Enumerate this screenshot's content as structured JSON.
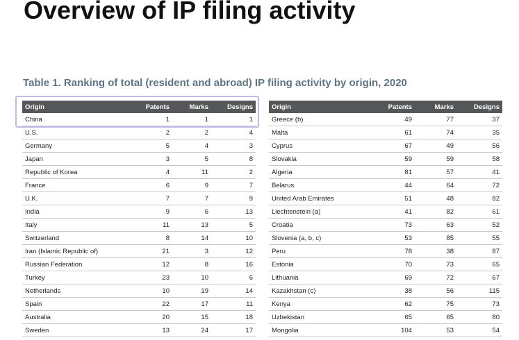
{
  "page_title": "Overview of IP filing activity",
  "table_caption": "Table 1. Ranking of total (resident and abroad) IP filing activity by origin, 2020",
  "columns": {
    "origin": "Origin",
    "patents": "Patents",
    "marks": "Marks",
    "designs": "Designs"
  },
  "left_rows": [
    {
      "origin": "China",
      "patents": "1",
      "marks": "1",
      "designs": "1"
    },
    {
      "origin": "U.S.",
      "patents": "2",
      "marks": "2",
      "designs": "4"
    },
    {
      "origin": "Germany",
      "patents": "5",
      "marks": "4",
      "designs": "3"
    },
    {
      "origin": "Japan",
      "patents": "3",
      "marks": "5",
      "designs": "8"
    },
    {
      "origin": "Republic of Korea",
      "patents": "4",
      "marks": "11",
      "designs": "2"
    },
    {
      "origin": "France",
      "patents": "6",
      "marks": "9",
      "designs": "7"
    },
    {
      "origin": "U.K.",
      "patents": "7",
      "marks": "7",
      "designs": "9"
    },
    {
      "origin": "India",
      "patents": "9",
      "marks": "6",
      "designs": "13"
    },
    {
      "origin": "Italy",
      "patents": "11",
      "marks": "13",
      "designs": "5"
    },
    {
      "origin": "Switzerland",
      "patents": "8",
      "marks": "14",
      "designs": "10"
    },
    {
      "origin": "Iran (Islamic Republic of)",
      "patents": "21",
      "marks": "3",
      "designs": "12"
    },
    {
      "origin": "Russian Federation",
      "patents": "12",
      "marks": "8",
      "designs": "16"
    },
    {
      "origin": "Turkey",
      "patents": "23",
      "marks": "10",
      "designs": "6"
    },
    {
      "origin": "Netherlands",
      "patents": "10",
      "marks": "19",
      "designs": "14"
    },
    {
      "origin": "Spain",
      "patents": "22",
      "marks": "17",
      "designs": "11"
    },
    {
      "origin": "Australia",
      "patents": "20",
      "marks": "15",
      "designs": "18"
    },
    {
      "origin": "Sweden",
      "patents": "13",
      "marks": "24",
      "designs": "17"
    }
  ],
  "right_rows": [
    {
      "origin": "Greece (b)",
      "patents": "49",
      "marks": "77",
      "designs": "37"
    },
    {
      "origin": "Malta",
      "patents": "61",
      "marks": "74",
      "designs": "35"
    },
    {
      "origin": "Cyprus",
      "patents": "67",
      "marks": "49",
      "designs": "56"
    },
    {
      "origin": "Slovakia",
      "patents": "59",
      "marks": "59",
      "designs": "58"
    },
    {
      "origin": "Algeria",
      "patents": "81",
      "marks": "57",
      "designs": "41"
    },
    {
      "origin": "Belarus",
      "patents": "44",
      "marks": "64",
      "designs": "72"
    },
    {
      "origin": "United Arab Emirates",
      "patents": "51",
      "marks": "48",
      "designs": "82"
    },
    {
      "origin": "Liechtenstein (a)",
      "patents": "41",
      "marks": "82",
      "designs": "61"
    },
    {
      "origin": "Croatia",
      "patents": "73",
      "marks": "63",
      "designs": "52"
    },
    {
      "origin": "Slovenia (a, b, c)",
      "patents": "53",
      "marks": "85",
      "designs": "55"
    },
    {
      "origin": "Peru",
      "patents": "78",
      "marks": "38",
      "designs": "87"
    },
    {
      "origin": "Estonia",
      "patents": "70",
      "marks": "73",
      "designs": "65"
    },
    {
      "origin": "Lithuania",
      "patents": "69",
      "marks": "72",
      "designs": "67"
    },
    {
      "origin": "Kazakhstan (c)",
      "patents": "38",
      "marks": "56",
      "designs": "115"
    },
    {
      "origin": "Kenya",
      "patents": "62",
      "marks": "75",
      "designs": "73"
    },
    {
      "origin": "Uzbekistan",
      "patents": "65",
      "marks": "65",
      "designs": "80"
    },
    {
      "origin": "Mongolia",
      "patents": "104",
      "marks": "53",
      "designs": "54"
    }
  ],
  "highlight_color": "#c5b8e6",
  "header_color": "#555759",
  "caption_color": "#5c7484"
}
